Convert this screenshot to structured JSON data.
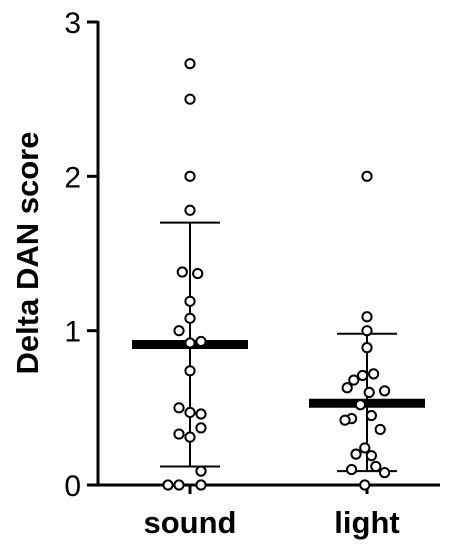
{
  "chart_data": {
    "type": "scatter",
    "title": "",
    "xlabel": "",
    "ylabel": "Delta DAN score",
    "ylim": [
      0,
      3
    ],
    "yticks": [
      {
        "value": 0,
        "label": "0"
      },
      {
        "value": 1,
        "label": "1"
      },
      {
        "value": 2,
        "label": "2"
      },
      {
        "value": 3,
        "label": "3"
      }
    ],
    "grid": false,
    "categories": [
      "sound",
      "light"
    ],
    "groups": [
      {
        "category": "sound",
        "mean": 0.91,
        "error_upper": 1.7,
        "error_lower": 0.12,
        "points": [
          {
            "y": 2.73,
            "offset": 0
          },
          {
            "y": 2.5,
            "offset": 0
          },
          {
            "y": 2.0,
            "offset": 0
          },
          {
            "y": 1.78,
            "offset": 0
          },
          {
            "y": 1.38,
            "offset": -0.7
          },
          {
            "y": 1.37,
            "offset": 0.7
          },
          {
            "y": 1.19,
            "offset": 0
          },
          {
            "y": 1.08,
            "offset": 0
          },
          {
            "y": 1.0,
            "offset": -1
          },
          {
            "y": 0.93,
            "offset": 1
          },
          {
            "y": 0.92,
            "offset": 0
          },
          {
            "y": 0.74,
            "offset": 0
          },
          {
            "y": 0.5,
            "offset": -1
          },
          {
            "y": 0.47,
            "offset": 0
          },
          {
            "y": 0.46,
            "offset": 1
          },
          {
            "y": 0.37,
            "offset": 1
          },
          {
            "y": 0.33,
            "offset": -1
          },
          {
            "y": 0.31,
            "offset": 0
          },
          {
            "y": 0.09,
            "offset": 1
          },
          {
            "y": 0.0,
            "offset": -2
          },
          {
            "y": 0.0,
            "offset": -1
          },
          {
            "y": 0.0,
            "offset": 1
          }
        ]
      },
      {
        "category": "light",
        "mean": 0.53,
        "error_upper": 0.98,
        "error_lower": 0.09,
        "points": [
          {
            "y": 2.0,
            "offset": 0
          },
          {
            "y": 1.09,
            "offset": 0
          },
          {
            "y": 1.0,
            "offset": 0
          },
          {
            "y": 0.89,
            "offset": 0
          },
          {
            "y": 0.72,
            "offset": 0.6
          },
          {
            "y": 0.71,
            "offset": -0.4
          },
          {
            "y": 0.68,
            "offset": -1.2
          },
          {
            "y": 0.63,
            "offset": -1.8
          },
          {
            "y": 0.61,
            "offset": 1.6
          },
          {
            "y": 0.6,
            "offset": 0.2
          },
          {
            "y": 0.52,
            "offset": -0.6
          },
          {
            "y": 0.45,
            "offset": 0.4
          },
          {
            "y": 0.43,
            "offset": -1.4
          },
          {
            "y": 0.42,
            "offset": -2
          },
          {
            "y": 0.36,
            "offset": 1.2
          },
          {
            "y": 0.24,
            "offset": -0.2
          },
          {
            "y": 0.2,
            "offset": -1
          },
          {
            "y": 0.19,
            "offset": 0.4
          },
          {
            "y": 0.12,
            "offset": 0.8
          },
          {
            "y": 0.1,
            "offset": -1.4
          },
          {
            "y": 0.08,
            "offset": 1.6
          },
          {
            "y": 0.0,
            "offset": -0.2
          }
        ]
      }
    ],
    "colors": {
      "marker_fill": "#ffffff",
      "marker_stroke": "#000000",
      "mean_bar": "#000000",
      "error_bar": "#000000",
      "axis": "#000000"
    }
  }
}
